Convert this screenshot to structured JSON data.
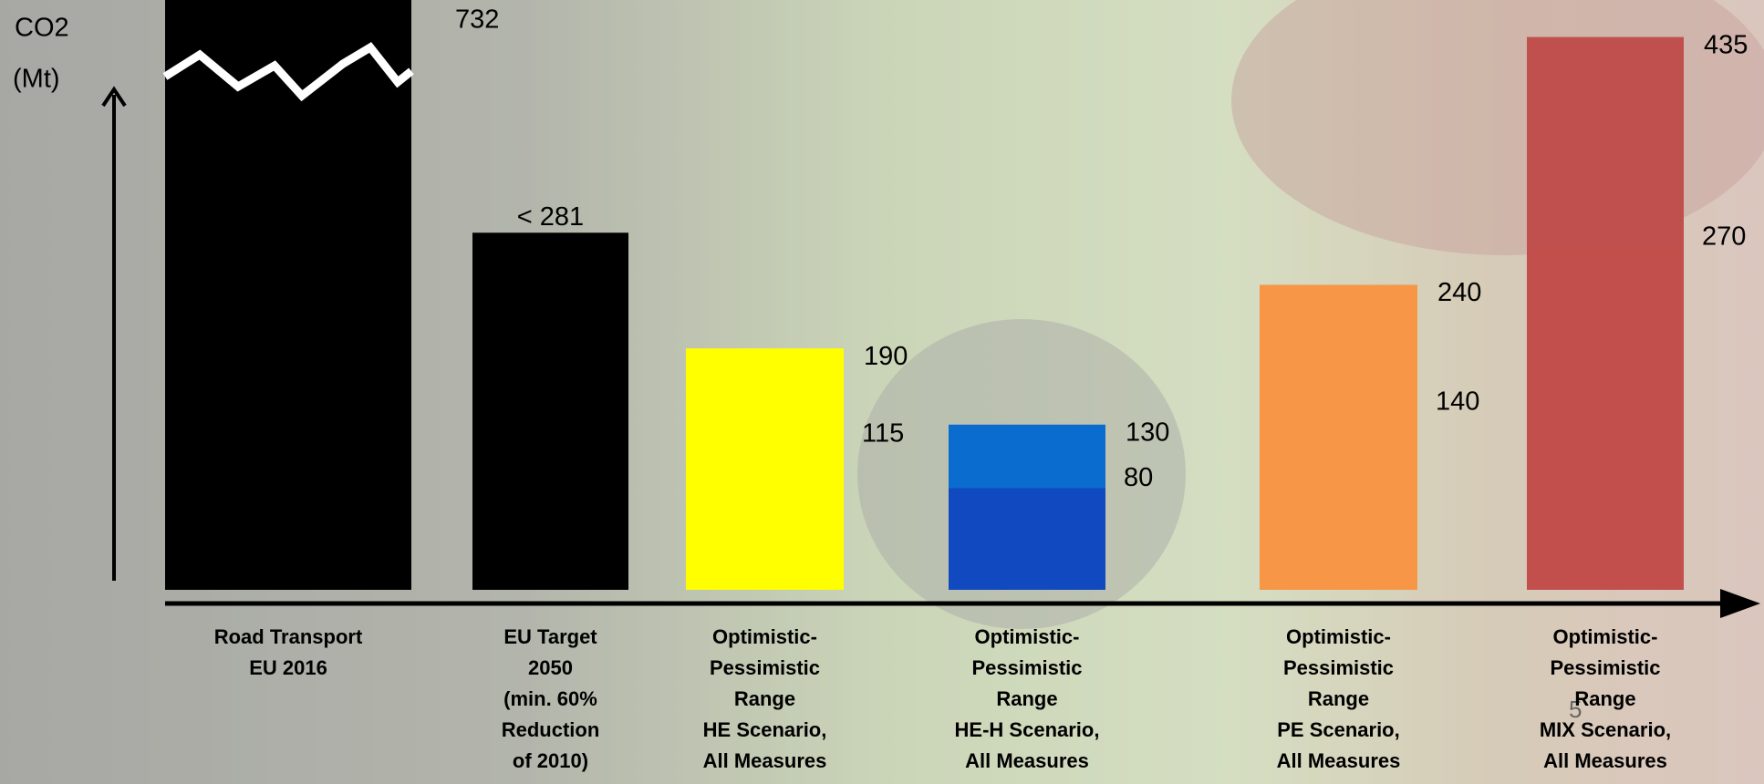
{
  "chart_data": {
    "type": "range_bar",
    "axis_label": [
      "CO2",
      "(Mt)"
    ],
    "categories": [
      "Road Transport\nEU 2016",
      "EU Target\n2050\n(min. 60%\nReduction\nof 2010)",
      "Optimistic-\nPessimistic\nRange\nHE Scenario,\nAll Measures",
      "Optimistic-\nPessimistic\nRange\nHE-H Scenario,\nAll Measures",
      "Optimistic-\nPessimistic\nRange\nPE Scenario,\nAll Measures",
      "Optimistic-\nPessimistic\nRange\nMIX Scenario,\nAll Measures"
    ],
    "values": [
      732,
      281,
      190,
      130,
      240,
      435
    ],
    "value_labels": [
      "732",
      "< 281",
      "190",
      "130",
      "240",
      "435"
    ],
    "low_values": [
      null,
      null,
      115,
      80,
      140,
      270
    ],
    "colors": [
      "#000000",
      "#000000",
      "#ffff00",
      "#0b6ccf",
      "#f79646",
      "#c0504d"
    ],
    "low_colors": [
      null,
      null,
      "#ffff00",
      "#1149c0",
      "#f79646",
      "#c24f4c"
    ],
    "page_number": "5"
  }
}
